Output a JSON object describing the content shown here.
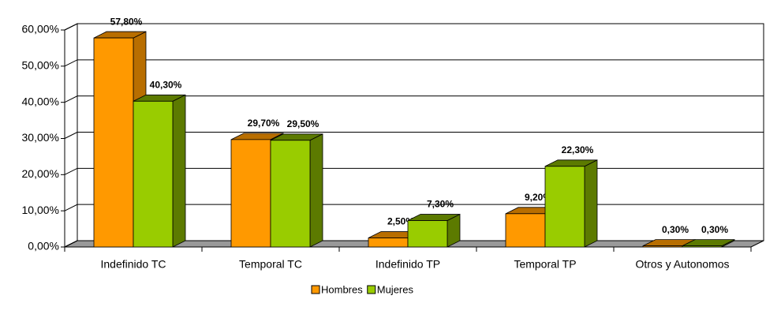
{
  "chart_data": {
    "type": "bar3d",
    "categories": [
      "Indefinido TC",
      "Temporal TC",
      "Indefinido TP",
      "Temporal TP",
      "Otros y Autonomos"
    ],
    "series": [
      {
        "name": "Hombres",
        "color": "#ff9900",
        "side_color": "#b86e00",
        "values": [
          57.8,
          29.7,
          2.5,
          9.2,
          0.3
        ],
        "value_labels": [
          "57,80%",
          "29,70%",
          "2,50%",
          "9,20%",
          "0,30%"
        ]
      },
      {
        "name": "Mujeres",
        "color": "#99cc00",
        "side_color": "#5c7a00",
        "values": [
          40.3,
          29.5,
          7.3,
          22.3,
          0.3
        ],
        "value_labels": [
          "40,30%",
          "29,50%",
          "7,30%",
          "22,30%",
          "0,30%"
        ]
      }
    ],
    "ylim": [
      0,
      60
    ],
    "yticks": [
      {
        "value": 0,
        "label": "0,00%"
      },
      {
        "value": 10,
        "label": "10,00%"
      },
      {
        "value": 20,
        "label": "20,00%"
      },
      {
        "value": 30,
        "label": "30,00%"
      },
      {
        "value": 40,
        "label": "40,00%"
      },
      {
        "value": 50,
        "label": "50,00%"
      },
      {
        "value": 60,
        "label": "60,00%"
      }
    ],
    "grid": true,
    "legend": "bottom"
  }
}
